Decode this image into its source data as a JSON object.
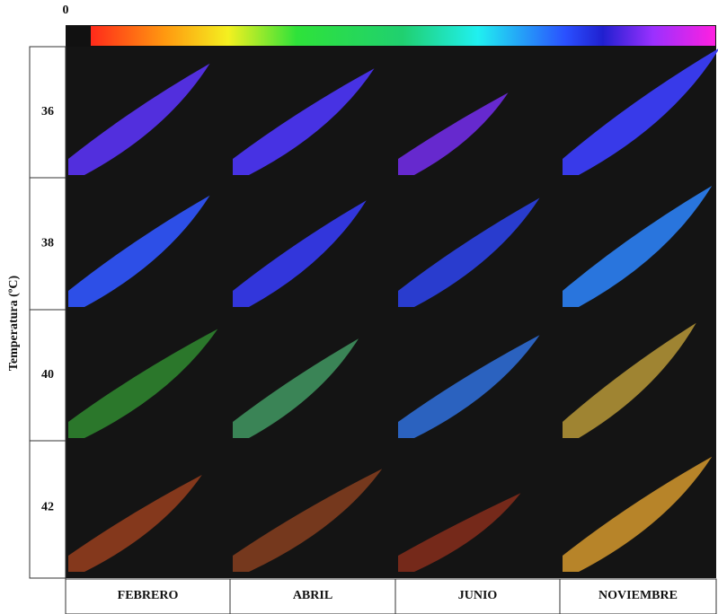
{
  "colorbar": {
    "label": "0"
  },
  "y_axis": {
    "title": "Temperatura (ºC)",
    "rows": [
      "36",
      "38",
      "40",
      "42"
    ]
  },
  "x_axis": {
    "columns": [
      "FEBRERO",
      "ABRIL",
      "JUNIO",
      "NOVIEMBRE"
    ]
  }
}
